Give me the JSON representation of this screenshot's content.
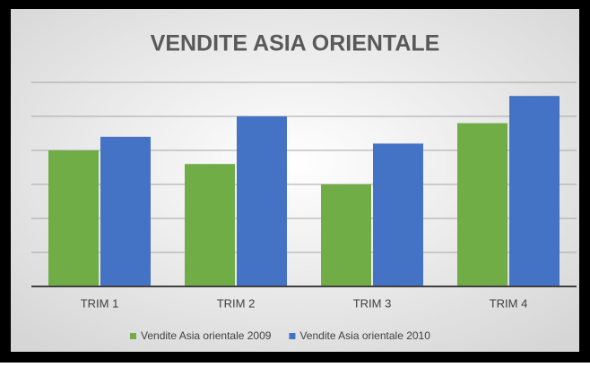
{
  "chart_data": {
    "type": "bar",
    "title": "VENDITE ASIA ORIENTALE",
    "categories": [
      "TRIM 1",
      "TRIM 2",
      "TRIM 3",
      "TRIM 4"
    ],
    "series": [
      {
        "name": "Vendite Asia orientale 2009",
        "color": "#70ad47",
        "values": [
          4.0,
          3.6,
          3.0,
          4.8
        ]
      },
      {
        "name": "Vendite Asia orientale 2010",
        "color": "#4472c4",
        "values": [
          4.4,
          5.0,
          4.2,
          5.6
        ]
      }
    ],
    "ylim": [
      0,
      6
    ],
    "yticks": [
      0,
      1,
      2,
      3,
      4,
      5,
      6
    ],
    "grid": true,
    "legend": "bottom"
  }
}
